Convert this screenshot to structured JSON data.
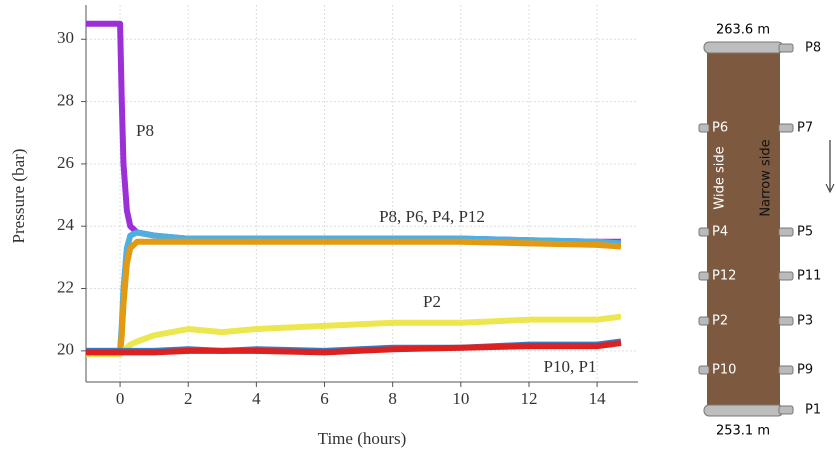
{
  "chart_data": {
    "type": "line",
    "xlabel": "Time (hours)",
    "ylabel": "Pressure (bar)",
    "x": [
      -1,
      -0.5,
      0,
      0.05,
      0.1,
      0.2,
      0.3,
      0.5,
      1,
      2,
      3,
      4,
      6,
      8,
      10,
      12,
      14,
      14.7
    ],
    "series": [
      {
        "color": "#9b30d9",
        "values": [
          30.5,
          30.5,
          30.5,
          28,
          26,
          24.5,
          24,
          23.8,
          23.7,
          23.6,
          23.6,
          23.6,
          23.6,
          23.6,
          23.6,
          23.55,
          23.5,
          23.5
        ]
      },
      {
        "color": "#4fb0e0",
        "values": [
          20,
          20,
          20,
          20.8,
          22,
          23.3,
          23.7,
          23.8,
          23.7,
          23.6,
          23.6,
          23.6,
          23.6,
          23.6,
          23.6,
          23.55,
          23.5,
          23.45
        ]
      },
      {
        "color": "#e39a10",
        "values": [
          19.9,
          19.9,
          19.9,
          20.5,
          21.5,
          22.8,
          23.3,
          23.5,
          23.5,
          23.5,
          23.5,
          23.5,
          23.5,
          23.5,
          23.5,
          23.45,
          23.4,
          23.35
        ]
      },
      {
        "color": "#ece650",
        "values": [
          19.9,
          19.9,
          19.9,
          20,
          20,
          20.1,
          20.2,
          20.3,
          20.5,
          20.7,
          20.6,
          20.7,
          20.8,
          20.9,
          20.9,
          21,
          21,
          21.1
        ]
      },
      {
        "color": "#3a78c0",
        "values": [
          20,
          20,
          20,
          20,
          20,
          20,
          20,
          20,
          20,
          20.05,
          20,
          20.05,
          20,
          20.1,
          20.1,
          20.2,
          20.2,
          20.3
        ]
      },
      {
        "color": "#dd2020",
        "values": [
          19.95,
          19.95,
          19.95,
          19.95,
          19.95,
          19.95,
          19.95,
          19.95,
          19.95,
          20,
          20,
          20,
          19.95,
          20.05,
          20.1,
          20.15,
          20.15,
          20.25
        ]
      }
    ],
    "annotations": [
      "P8",
      "P8, P6, P4, P12",
      "P2",
      "P10, P1"
    ],
    "xlim": [
      -1,
      15.2
    ],
    "xticks": [
      0,
      2,
      4,
      6,
      8,
      10,
      12,
      14
    ],
    "ylim": [
      19,
      31.1
    ],
    "yticks": [
      20,
      22,
      24,
      26,
      28,
      30
    ],
    "grid": true
  },
  "diagram": {
    "top_label": "263.6 m",
    "bottom_label": "253.1 m",
    "left_side": "Wide side",
    "right_side": "Narrow side",
    "left_ports": [
      "P6",
      "P4",
      "P12",
      "P2",
      "P10"
    ],
    "right_ports": [
      "P8",
      "P7",
      "P5",
      "P11",
      "P3",
      "P9",
      "P1"
    ]
  }
}
